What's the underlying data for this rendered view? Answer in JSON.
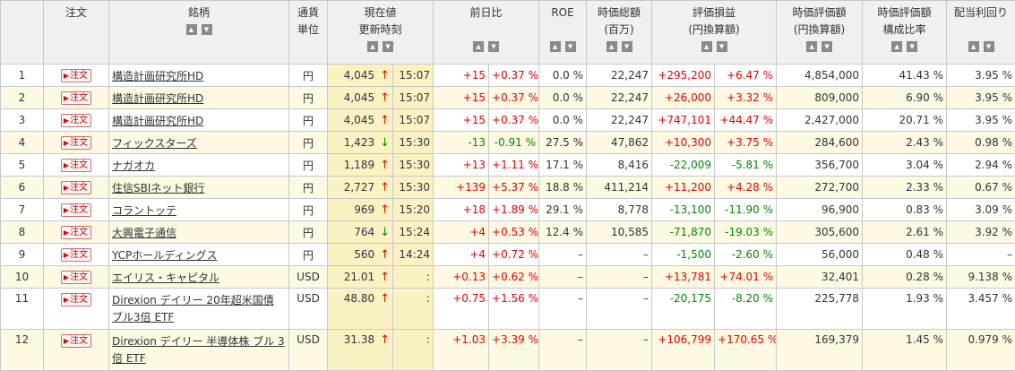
{
  "headers": {
    "order": "注文",
    "name": "銘柄",
    "currency": [
      "通貨",
      "単位"
    ],
    "price": [
      "現在値",
      "更新時刻"
    ],
    "change": "前日比",
    "roe": "ROE",
    "mcap": [
      "時価総額",
      "(百万)"
    ],
    "pl": [
      "評価損益",
      "(円換算額)"
    ],
    "value": [
      "時価評価額",
      "(円換算額)"
    ],
    "ratio": [
      "時価評価額",
      "構成比率"
    ],
    "yield": "配当利回り"
  },
  "sort_icons": {
    "up": "▲",
    "down": "▼"
  },
  "order_label": "注文",
  "colors": {
    "up": "#e60000",
    "down": "#008800",
    "row_alt": "#fdf9e3",
    "price_bg": "#fbf2c4"
  },
  "rows": [
    {
      "no": "1",
      "name": "構造計画研究所HD",
      "cur": "円",
      "price": "4,045",
      "arrow": "↑",
      "dir": "up",
      "time": "15:07",
      "chg": "+15",
      "chgpct": "+0.37 %",
      "roe": "0.0 %",
      "mcap": "22,247",
      "pl": "+295,200",
      "plpct": "+6.47 %",
      "value": "4,854,000",
      "ratio": "41.43 %",
      "yield": "3.95 %"
    },
    {
      "no": "2",
      "name": "構造計画研究所HD",
      "cur": "円",
      "price": "4,045",
      "arrow": "↑",
      "dir": "up",
      "time": "15:07",
      "chg": "+15",
      "chgpct": "+0.37 %",
      "roe": "0.0 %",
      "mcap": "22,247",
      "pl": "+26,000",
      "plpct": "+3.32 %",
      "value": "809,000",
      "ratio": "6.90 %",
      "yield": "3.95 %"
    },
    {
      "no": "3",
      "name": "構造計画研究所HD",
      "cur": "円",
      "price": "4,045",
      "arrow": "↑",
      "dir": "up",
      "time": "15:07",
      "chg": "+15",
      "chgpct": "+0.37 %",
      "roe": "0.0 %",
      "mcap": "22,247",
      "pl": "+747,101",
      "plpct": "+44.47 %",
      "value": "2,427,000",
      "ratio": "20.71 %",
      "yield": "3.95 %"
    },
    {
      "no": "4",
      "name": "フィックスターズ",
      "cur": "円",
      "price": "1,423",
      "arrow": "↓",
      "dir": "down",
      "time": "15:30",
      "chg": "-13",
      "chgpct": "-0.91 %",
      "roe": "27.5 %",
      "mcap": "47,862",
      "pl": "+10,300",
      "plpct": "+3.75 %",
      "value": "284,600",
      "ratio": "2.43 %",
      "yield": "0.98 %"
    },
    {
      "no": "5",
      "name": "ナガオカ",
      "cur": "円",
      "price": "1,189",
      "arrow": "↑",
      "dir": "up",
      "time": "15:30",
      "chg": "+13",
      "chgpct": "+1.11 %",
      "roe": "17.1 %",
      "mcap": "8,416",
      "pl": "-22,009",
      "plpct": "-5.81 %",
      "value": "356,700",
      "ratio": "3.04 %",
      "yield": "2.94 %"
    },
    {
      "no": "6",
      "name": "住信SBIネット銀行",
      "cur": "円",
      "price": "2,727",
      "arrow": "↑",
      "dir": "up",
      "time": "15:30",
      "chg": "+139",
      "chgpct": "+5.37 %",
      "roe": "18.8 %",
      "mcap": "411,214",
      "pl": "+11,200",
      "plpct": "+4.28 %",
      "value": "272,700",
      "ratio": "2.33 %",
      "yield": "0.67 %"
    },
    {
      "no": "7",
      "name": "コラントッテ",
      "cur": "円",
      "price": "969",
      "arrow": "↑",
      "dir": "up",
      "time": "15:20",
      "chg": "+18",
      "chgpct": "+1.89 %",
      "roe": "29.1 %",
      "mcap": "8,778",
      "pl": "-13,100",
      "plpct": "-11.90 %",
      "value": "96,900",
      "ratio": "0.83 %",
      "yield": "3.09 %"
    },
    {
      "no": "8",
      "name": "大興電子通信",
      "cur": "円",
      "price": "764",
      "arrow": "↓",
      "dir": "down",
      "time": "15:24",
      "chg": "+4",
      "chgpct": "+0.53 %",
      "roe": "12.4 %",
      "mcap": "10,585",
      "pl": "-71,870",
      "plpct": "-19.03 %",
      "value": "305,600",
      "ratio": "2.61 %",
      "yield": "3.92 %"
    },
    {
      "no": "9",
      "name": "YCPホールディングス",
      "cur": "円",
      "price": "560",
      "arrow": "↑",
      "dir": "up",
      "time": "14:24",
      "chg": "+4",
      "chgpct": "+0.72 %",
      "roe": "–",
      "mcap": "–",
      "pl": "-1,500",
      "plpct": "-2.60 %",
      "value": "56,000",
      "ratio": "0.48 %",
      "yield": "–"
    },
    {
      "no": "10",
      "name": "エイリス・キャピタル",
      "cur": "USD",
      "price": "21.01",
      "arrow": "↑",
      "dir": "up",
      "time": ":",
      "chg": "+0.13",
      "chgpct": "+0.62 %",
      "roe": "–",
      "mcap": "–",
      "pl": "+13,781",
      "plpct": "+74.01 %",
      "value": "32,401",
      "ratio": "0.28 %",
      "yield": "9.138 %"
    },
    {
      "no": "11",
      "name": "Direxion デイリー 20年超米国債 ブル3倍 ETF",
      "cur": "USD",
      "price": "48.80",
      "arrow": "↑",
      "dir": "up",
      "time": ":",
      "chg": "+0.75",
      "chgpct": "+1.56 %",
      "roe": "–",
      "mcap": "–",
      "pl": "-20,175",
      "plpct": "-8.20 %",
      "value": "225,778",
      "ratio": "1.93 %",
      "yield": "3.457 %"
    },
    {
      "no": "12",
      "name": "Direxion デイリー 半導体株 ブル 3倍 ETF",
      "cur": "USD",
      "price": "31.38",
      "arrow": "↑",
      "dir": "up",
      "time": ":",
      "chg": "+1.03",
      "chgpct": "+3.39 %",
      "roe": "–",
      "mcap": "–",
      "pl": "+106,799",
      "plpct": "+170.65 %",
      "value": "169,379",
      "ratio": "1.45 %",
      "yield": "0.979 %"
    }
  ]
}
